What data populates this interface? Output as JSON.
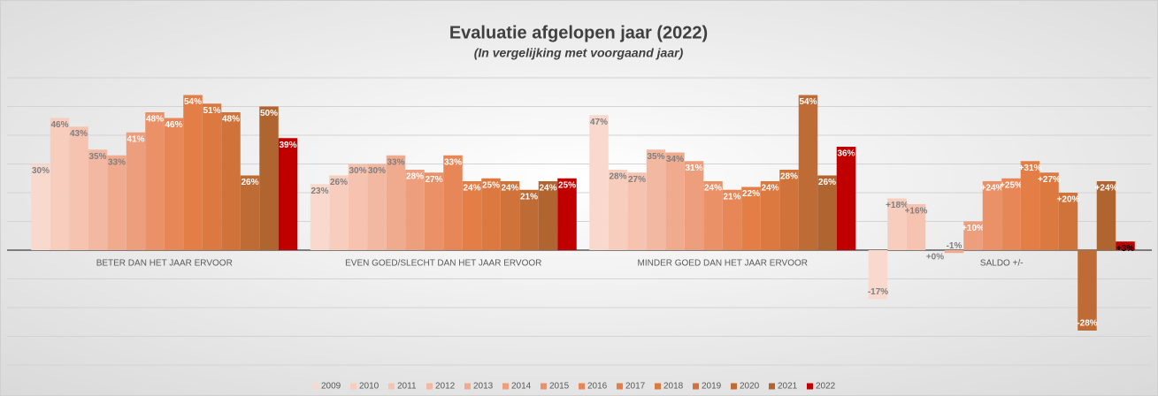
{
  "chart_data": {
    "type": "bar",
    "title": "Evaluatie afgelopen jaar (2022)",
    "subtitle": "(In vergelijking met voorgaand jaar)",
    "categories": [
      "BETER DAN HET JAAR ERVOOR",
      "EVEN GOED/SLECHT DAN HET JAAR ERVOOR",
      "MINDER GOED DAN HET JAAR ERVOOR",
      "SALDO +/-"
    ],
    "ylim": [
      -40,
      60
    ],
    "yticks": [
      -40,
      -30,
      -20,
      -10,
      0,
      10,
      20,
      30,
      40,
      50,
      60
    ],
    "grid": true,
    "legend": "bottom",
    "series": [
      {
        "name": "2009",
        "color": "#f9d9cd",
        "values": [
          30,
          23,
          47,
          -17
        ],
        "value_labels": [
          "30%",
          "23%",
          "47%",
          "-17%"
        ]
      },
      {
        "name": "2010",
        "color": "#f7cdbd",
        "values": [
          46,
          26,
          28,
          18
        ],
        "value_labels": [
          "46%",
          "26%",
          "28%",
          "+18%"
        ]
      },
      {
        "name": "2011",
        "color": "#f5c3b0",
        "values": [
          43,
          30,
          27,
          16
        ],
        "value_labels": [
          "43%",
          "30%",
          "27%",
          "+16%"
        ]
      },
      {
        "name": "2012",
        "color": "#f3b8a1",
        "values": [
          35,
          30,
          35,
          0
        ],
        "value_labels": [
          "35%",
          "30%",
          "35%",
          "+0%"
        ]
      },
      {
        "name": "2013",
        "color": "#f0ab8f",
        "values": [
          33,
          33,
          34,
          -1
        ],
        "value_labels": [
          "33%",
          "33%",
          "34%",
          "-1%"
        ]
      },
      {
        "name": "2014",
        "color": "#ed9e7c",
        "values": [
          41,
          28,
          31,
          10
        ],
        "value_labels": [
          "41%",
          "28%",
          "31%",
          "+10%"
        ]
      },
      {
        "name": "2015",
        "color": "#ea9168",
        "values": [
          48,
          27,
          24,
          24
        ],
        "value_labels": [
          "48%",
          "27%",
          "24%",
          "+24%"
        ]
      },
      {
        "name": "2016",
        "color": "#e78757",
        "values": [
          46,
          33,
          21,
          25
        ],
        "value_labels": [
          "46%",
          "33%",
          "21%",
          "+25%"
        ]
      },
      {
        "name": "2017",
        "color": "#e37e47",
        "values": [
          54,
          24,
          22,
          31
        ],
        "value_labels": [
          "54%",
          "24%",
          "22%",
          "+31%"
        ]
      },
      {
        "name": "2018",
        "color": "#db7940",
        "values": [
          51,
          25,
          24,
          27
        ],
        "value_labels": [
          "51%",
          "25%",
          "24%",
          "+27%"
        ]
      },
      {
        "name": "2019",
        "color": "#cf733a",
        "values": [
          48,
          24,
          28,
          20
        ],
        "value_labels": [
          "48%",
          "24%",
          "28%",
          "+20%"
        ]
      },
      {
        "name": "2020",
        "color": "#bf6b35",
        "values": [
          26,
          21,
          54,
          -28
        ],
        "value_labels": [
          "26%",
          "21%",
          "54%",
          "-28%"
        ]
      },
      {
        "name": "2021",
        "color": "#b06430",
        "values": [
          50,
          24,
          26,
          24
        ],
        "value_labels": [
          "50%",
          "24%",
          "26%",
          "+24%"
        ]
      },
      {
        "name": "2022",
        "color": "#c00000",
        "values": [
          39,
          25,
          36,
          3
        ],
        "value_labels": [
          "39%",
          "25%",
          "36%",
          "+3%"
        ]
      }
    ]
  }
}
